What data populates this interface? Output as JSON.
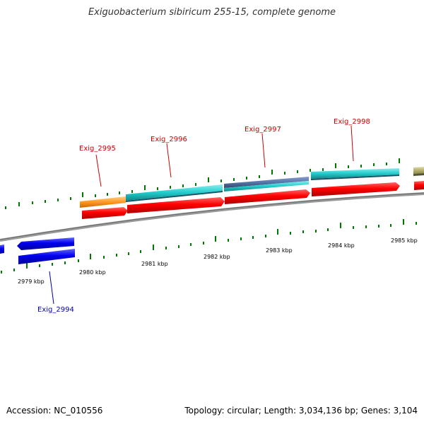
{
  "title": "Exiguobacterium sibiricum 255-15, complete genome",
  "footer": {
    "accession": "Accession: NC_010556",
    "summary": "Topology: circular; Length: 3,034,136 bp; Genes: 3,104"
  },
  "ticks": {
    "labels": [
      "2979 kbp",
      "2980 kbp",
      "2981 kbp",
      "2982 kbp",
      "2983 kbp",
      "2984 kbp",
      "2985 kbp"
    ]
  },
  "genes": [
    {
      "name": "Exig_2994",
      "strand": "minus",
      "color": "#0000dd"
    },
    {
      "name": "Exig_2995",
      "strand": "plus",
      "color": "#cc0000"
    },
    {
      "name": "Exig_2996",
      "strand": "plus",
      "color": "#cc0000"
    },
    {
      "name": "Exig_2997",
      "strand": "plus",
      "color": "#cc0000"
    },
    {
      "name": "Exig_2998",
      "strand": "plus",
      "color": "#cc0000"
    }
  ],
  "colors": {
    "plus_gene": "#ee0000",
    "minus_gene": "#0000ee",
    "cds_cyan": "#22cccc",
    "cds_orange": "#ff9922",
    "cds_steel": "#5577aa",
    "backbone": "#888888",
    "tick": "#007700"
  }
}
